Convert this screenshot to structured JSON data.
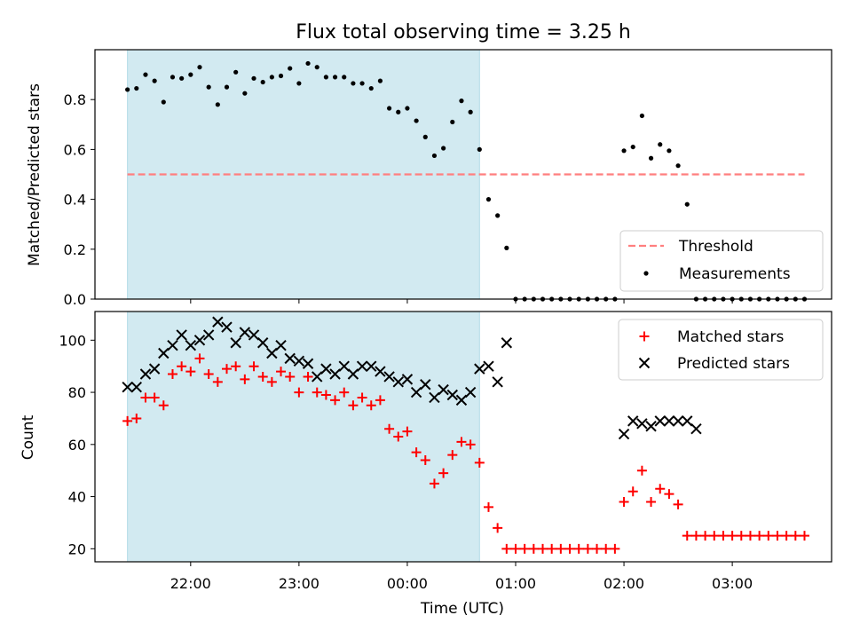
{
  "title": "Flux total observing time = 3.25 h",
  "colors": {
    "shade": "#add8e6",
    "threshold": "#ff7f7f",
    "measurement": "#000000",
    "matched": "#ff0000",
    "predicted": "#000000"
  },
  "chart_data": [
    {
      "type": "scatter",
      "ylabel": "Matched/Predicted stars",
      "ylim": [
        0,
        1.0
      ],
      "yticks": [
        "0.0",
        "0.2",
        "0.4",
        "0.6",
        "0.8"
      ],
      "legend_position": "lower right",
      "shaded_interval": [
        "21:25",
        "00:40"
      ],
      "threshold": {
        "name": "Threshold",
        "value": 0.5,
        "x_range": [
          "21:25",
          "03:40"
        ]
      },
      "measurements": {
        "name": "Measurements",
        "x": [
          "21:25",
          "21:30",
          "21:35",
          "21:40",
          "21:45",
          "21:50",
          "21:55",
          "22:00",
          "22:05",
          "22:10",
          "22:15",
          "22:20",
          "22:25",
          "22:30",
          "22:35",
          "22:40",
          "22:45",
          "22:50",
          "22:55",
          "23:00",
          "23:05",
          "23:10",
          "23:15",
          "23:20",
          "23:25",
          "23:30",
          "23:35",
          "23:40",
          "23:45",
          "23:50",
          "23:55",
          "00:00",
          "00:05",
          "00:10",
          "00:15",
          "00:20",
          "00:25",
          "00:30",
          "00:35",
          "00:40",
          "00:45",
          "00:50",
          "00:55",
          "01:00",
          "01:05",
          "01:10",
          "01:15",
          "01:20",
          "01:25",
          "01:30",
          "01:35",
          "01:40",
          "01:45",
          "01:50",
          "01:55",
          "02:00",
          "02:05",
          "02:10",
          "02:15",
          "02:20",
          "02:25",
          "02:30",
          "02:35",
          "02:40",
          "02:45",
          "02:50",
          "02:55",
          "03:00",
          "03:05",
          "03:10",
          "03:15",
          "03:20",
          "03:25",
          "03:30",
          "03:35",
          "03:40"
        ],
        "y": [
          0.84,
          0.845,
          0.9,
          0.875,
          0.79,
          0.89,
          0.885,
          0.9,
          0.93,
          0.85,
          0.78,
          0.85,
          0.91,
          0.825,
          0.885,
          0.87,
          0.89,
          0.895,
          0.925,
          0.865,
          0.945,
          0.93,
          0.89,
          0.89,
          0.89,
          0.865,
          0.865,
          0.845,
          0.875,
          0.765,
          0.75,
          0.765,
          0.715,
          0.65,
          0.575,
          0.605,
          0.71,
          0.795,
          0.75,
          0.6,
          0.4,
          0.335,
          0.205,
          0,
          0,
          0,
          0,
          0,
          0,
          0,
          0,
          0,
          0,
          0,
          0,
          0.595,
          0.61,
          0.735,
          0.565,
          0.62,
          0.595,
          0.535,
          0.38,
          0,
          0,
          0,
          0,
          0,
          0,
          0,
          0,
          0,
          0,
          0,
          0,
          0
        ]
      }
    },
    {
      "type": "scatter",
      "ylabel": "Count",
      "xlabel": "Time (UTC)",
      "ylim": [
        15,
        111
      ],
      "yticks": [
        "20",
        "40",
        "60",
        "80",
        "100"
      ],
      "xticks": [
        "22:00",
        "23:00",
        "00:00",
        "01:00",
        "02:00",
        "03:00"
      ],
      "xlim": [
        "21:07",
        "03:55"
      ],
      "legend_position": "upper right",
      "shaded_interval": [
        "21:25",
        "00:40"
      ],
      "series": [
        {
          "name": "Matched stars",
          "marker": "plus",
          "x": [
            "21:25",
            "21:30",
            "21:35",
            "21:40",
            "21:45",
            "21:50",
            "21:55",
            "22:00",
            "22:05",
            "22:10",
            "22:15",
            "22:20",
            "22:25",
            "22:30",
            "22:35",
            "22:40",
            "22:45",
            "22:50",
            "22:55",
            "23:00",
            "23:05",
            "23:10",
            "23:15",
            "23:20",
            "23:25",
            "23:30",
            "23:35",
            "23:40",
            "23:45",
            "23:50",
            "23:55",
            "00:00",
            "00:05",
            "00:10",
            "00:15",
            "00:20",
            "00:25",
            "00:30",
            "00:35",
            "00:40",
            "00:45",
            "00:50",
            "00:55",
            "01:00",
            "01:05",
            "01:10",
            "01:15",
            "01:20",
            "01:25",
            "01:30",
            "01:35",
            "01:40",
            "01:45",
            "01:50",
            "01:55",
            "02:00",
            "02:05",
            "02:10",
            "02:15",
            "02:20",
            "02:25",
            "02:30",
            "02:35",
            "02:40",
            "02:45",
            "02:50",
            "02:55",
            "03:00",
            "03:05",
            "03:10",
            "03:15",
            "03:20",
            "03:25",
            "03:30",
            "03:35",
            "03:40"
          ],
          "y": [
            69,
            70,
            78,
            78,
            75,
            87,
            90,
            88,
            93,
            87,
            84,
            89,
            90,
            85,
            90,
            86,
            84,
            88,
            86,
            80,
            86,
            80,
            79,
            77,
            80,
            75,
            78,
            75,
            77,
            66,
            63,
            65,
            57,
            54,
            45,
            49,
            56,
            61,
            60,
            53,
            36,
            28,
            20,
            20,
            20,
            20,
            20,
            20,
            20,
            20,
            20,
            20,
            20,
            20,
            20,
            38,
            42,
            50,
            38,
            43,
            41,
            37,
            25,
            25,
            25,
            25,
            25,
            25,
            25,
            25,
            25,
            25,
            25,
            25,
            25,
            25
          ]
        },
        {
          "name": "Predicted stars",
          "marker": "x",
          "x": [
            "21:25",
            "21:30",
            "21:35",
            "21:40",
            "21:45",
            "21:50",
            "21:55",
            "22:00",
            "22:05",
            "22:10",
            "22:15",
            "22:20",
            "22:25",
            "22:30",
            "22:35",
            "22:40",
            "22:45",
            "22:50",
            "22:55",
            "23:00",
            "23:05",
            "23:10",
            "23:15",
            "23:20",
            "23:25",
            "23:30",
            "23:35",
            "23:40",
            "23:45",
            "23:50",
            "23:55",
            "00:00",
            "00:05",
            "00:10",
            "00:15",
            "00:20",
            "00:25",
            "00:30",
            "00:35",
            "00:40",
            "00:45",
            "00:50",
            "00:55",
            "02:00",
            "02:05",
            "02:10",
            "02:15",
            "02:20",
            "02:25",
            "02:30",
            "02:35",
            "02:40"
          ],
          "y": [
            82,
            82,
            87,
            89,
            95,
            98,
            102,
            98,
            100,
            102,
            107,
            105,
            99,
            103,
            102,
            99,
            95,
            98,
            93,
            92,
            91,
            86,
            89,
            87,
            90,
            87,
            90,
            90,
            88,
            86,
            84,
            85,
            80,
            83,
            78,
            81,
            79,
            77,
            80,
            89,
            90,
            84,
            99,
            64,
            69,
            68,
            67,
            69,
            69,
            69,
            69,
            66
          ]
        }
      ]
    }
  ]
}
